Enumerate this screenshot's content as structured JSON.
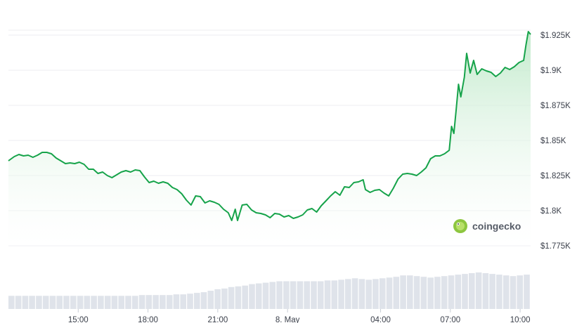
{
  "brand": {
    "name": "coingecko"
  },
  "colors": {
    "line": "#16a34a",
    "area_top": "#bfe9c9",
    "area_bottom": "#ffffff",
    "volume": "#dfe3ea",
    "grid": "#eceef1",
    "logo": "#8dc63f"
  },
  "chart_data": {
    "type": "area",
    "title": "",
    "xlabel": "",
    "ylabel": "",
    "x_ticks": [
      {
        "label": "15:00",
        "t": 3.0
      },
      {
        "label": "18:00",
        "t": 6.0
      },
      {
        "label": "21:00",
        "t": 9.0
      },
      {
        "label": "8. May",
        "t": 12.0
      },
      {
        "label": "04:00",
        "t": 16.0
      },
      {
        "label": "07:00",
        "t": 19.0
      },
      {
        "label": "10:00",
        "t": 22.0
      }
    ],
    "y_ticks": [
      {
        "label": "$1.775K",
        "value": 1775
      },
      {
        "label": "$1.8K",
        "value": 1800
      },
      {
        "label": "$1.825K",
        "value": 1825
      },
      {
        "label": "$1.85K",
        "value": 1850
      },
      {
        "label": "$1.875K",
        "value": 1875
      },
      {
        "label": "$1.9K",
        "value": 1900
      },
      {
        "label": "$1.925K",
        "value": 1925
      }
    ],
    "ylim": [
      1775,
      1935
    ],
    "xlim": [
      11.75,
      34.2
    ],
    "grid": true,
    "series": [
      {
        "type": "line",
        "points": [
          [
            11.75,
            1835.5
          ],
          [
            12.0,
            1838.5
          ],
          [
            12.2,
            1840.0
          ],
          [
            12.4,
            1839.0
          ],
          [
            12.6,
            1839.5
          ],
          [
            12.8,
            1838.0
          ],
          [
            13.0,
            1839.5
          ],
          [
            13.2,
            1841.5
          ],
          [
            13.4,
            1841.5
          ],
          [
            13.6,
            1840.5
          ],
          [
            13.8,
            1837.5
          ],
          [
            14.0,
            1835.5
          ],
          [
            14.2,
            1833.5
          ],
          [
            14.4,
            1834.0
          ],
          [
            14.6,
            1833.5
          ],
          [
            14.8,
            1834.5
          ],
          [
            15.0,
            1833.0
          ],
          [
            15.2,
            1829.5
          ],
          [
            15.4,
            1829.5
          ],
          [
            15.6,
            1826.5
          ],
          [
            15.8,
            1827.5
          ],
          [
            16.0,
            1825.0
          ],
          [
            16.2,
            1823.5
          ],
          [
            16.4,
            1825.5
          ],
          [
            16.6,
            1827.5
          ],
          [
            16.8,
            1828.5
          ],
          [
            17.0,
            1827.5
          ],
          [
            17.2,
            1829.0
          ],
          [
            17.4,
            1828.5
          ],
          [
            17.6,
            1824.0
          ],
          [
            17.8,
            1820.0
          ],
          [
            18.0,
            1821.0
          ],
          [
            18.2,
            1819.5
          ],
          [
            18.4,
            1820.5
          ],
          [
            18.6,
            1819.5
          ],
          [
            18.8,
            1816.5
          ],
          [
            19.0,
            1815.0
          ],
          [
            19.2,
            1812.0
          ],
          [
            19.4,
            1807.5
          ],
          [
            19.6,
            1804.0
          ],
          [
            19.8,
            1810.5
          ],
          [
            20.0,
            1810.0
          ],
          [
            20.2,
            1805.5
          ],
          [
            20.4,
            1807.0
          ],
          [
            20.6,
            1806.0
          ],
          [
            20.8,
            1804.5
          ],
          [
            21.0,
            1801.0
          ],
          [
            21.2,
            1798.5
          ],
          [
            21.35,
            1793.0
          ],
          [
            21.5,
            1801.0
          ],
          [
            21.6,
            1793.0
          ],
          [
            21.8,
            1804.0
          ],
          [
            22.0,
            1804.5
          ],
          [
            22.2,
            1800.5
          ],
          [
            22.4,
            1798.5
          ],
          [
            22.6,
            1798.0
          ],
          [
            22.8,
            1797.0
          ],
          [
            23.0,
            1795.0
          ],
          [
            23.2,
            1798.0
          ],
          [
            23.4,
            1797.5
          ],
          [
            23.6,
            1795.5
          ],
          [
            23.8,
            1796.5
          ],
          [
            24.0,
            1794.5
          ],
          [
            24.2,
            1795.5
          ],
          [
            24.4,
            1797.0
          ],
          [
            24.6,
            1800.5
          ],
          [
            24.8,
            1801.5
          ],
          [
            25.0,
            1799.0
          ],
          [
            25.2,
            1803.5
          ],
          [
            25.4,
            1807.0
          ],
          [
            25.6,
            1810.5
          ],
          [
            25.8,
            1813.5
          ],
          [
            26.0,
            1811.0
          ],
          [
            26.2,
            1817.0
          ],
          [
            26.4,
            1816.5
          ],
          [
            26.6,
            1820.0
          ],
          [
            26.8,
            1820.5
          ],
          [
            27.0,
            1822.0
          ],
          [
            27.1,
            1815.0
          ],
          [
            27.3,
            1813.0
          ],
          [
            27.5,
            1814.5
          ],
          [
            27.7,
            1815.0
          ],
          [
            27.9,
            1812.5
          ],
          [
            28.1,
            1810.5
          ],
          [
            28.3,
            1816.0
          ],
          [
            28.5,
            1822.5
          ],
          [
            28.7,
            1826.0
          ],
          [
            28.9,
            1826.5
          ],
          [
            29.1,
            1826.0
          ],
          [
            29.3,
            1825.0
          ],
          [
            29.5,
            1827.5
          ],
          [
            29.7,
            1830.5
          ],
          [
            29.9,
            1837.0
          ],
          [
            30.1,
            1839.0
          ],
          [
            30.3,
            1839.0
          ],
          [
            30.5,
            1840.5
          ],
          [
            30.7,
            1843.0
          ],
          [
            30.8,
            1860.0
          ],
          [
            30.9,
            1855.0
          ],
          [
            31.0,
            1872.0
          ],
          [
            31.1,
            1890.0
          ],
          [
            31.2,
            1881.0
          ],
          [
            31.35,
            1895.0
          ],
          [
            31.45,
            1912.0
          ],
          [
            31.6,
            1898.0
          ],
          [
            31.75,
            1907.0
          ],
          [
            31.9,
            1897.0
          ],
          [
            32.1,
            1901.0
          ],
          [
            32.3,
            1899.5
          ],
          [
            32.5,
            1898.5
          ],
          [
            32.7,
            1895.5
          ],
          [
            32.9,
            1898.0
          ],
          [
            33.1,
            1902.0
          ],
          [
            33.3,
            1900.5
          ],
          [
            33.5,
            1902.5
          ],
          [
            33.7,
            1905.5
          ],
          [
            33.9,
            1907.0
          ],
          [
            34.0,
            1918.0
          ],
          [
            34.1,
            1927.5
          ],
          [
            34.2,
            1925.5
          ]
        ]
      },
      {
        "type": "volume",
        "values": [
          18,
          18,
          18,
          18,
          18,
          18,
          18,
          18,
          18,
          18,
          18,
          18,
          18,
          18,
          18,
          18,
          18,
          18,
          18,
          19,
          19,
          19,
          19,
          19,
          20,
          20,
          21,
          22,
          23,
          25,
          27,
          28,
          30,
          31,
          32,
          34,
          35,
          36,
          37,
          38,
          38,
          38,
          38,
          38,
          38,
          38,
          39,
          39,
          40,
          41,
          42,
          41,
          40,
          41,
          42,
          43,
          44,
          46,
          46,
          45,
          44,
          43,
          44,
          45,
          46,
          47,
          48,
          49,
          50,
          49,
          48,
          47,
          46,
          45,
          46,
          47
        ]
      }
    ]
  }
}
